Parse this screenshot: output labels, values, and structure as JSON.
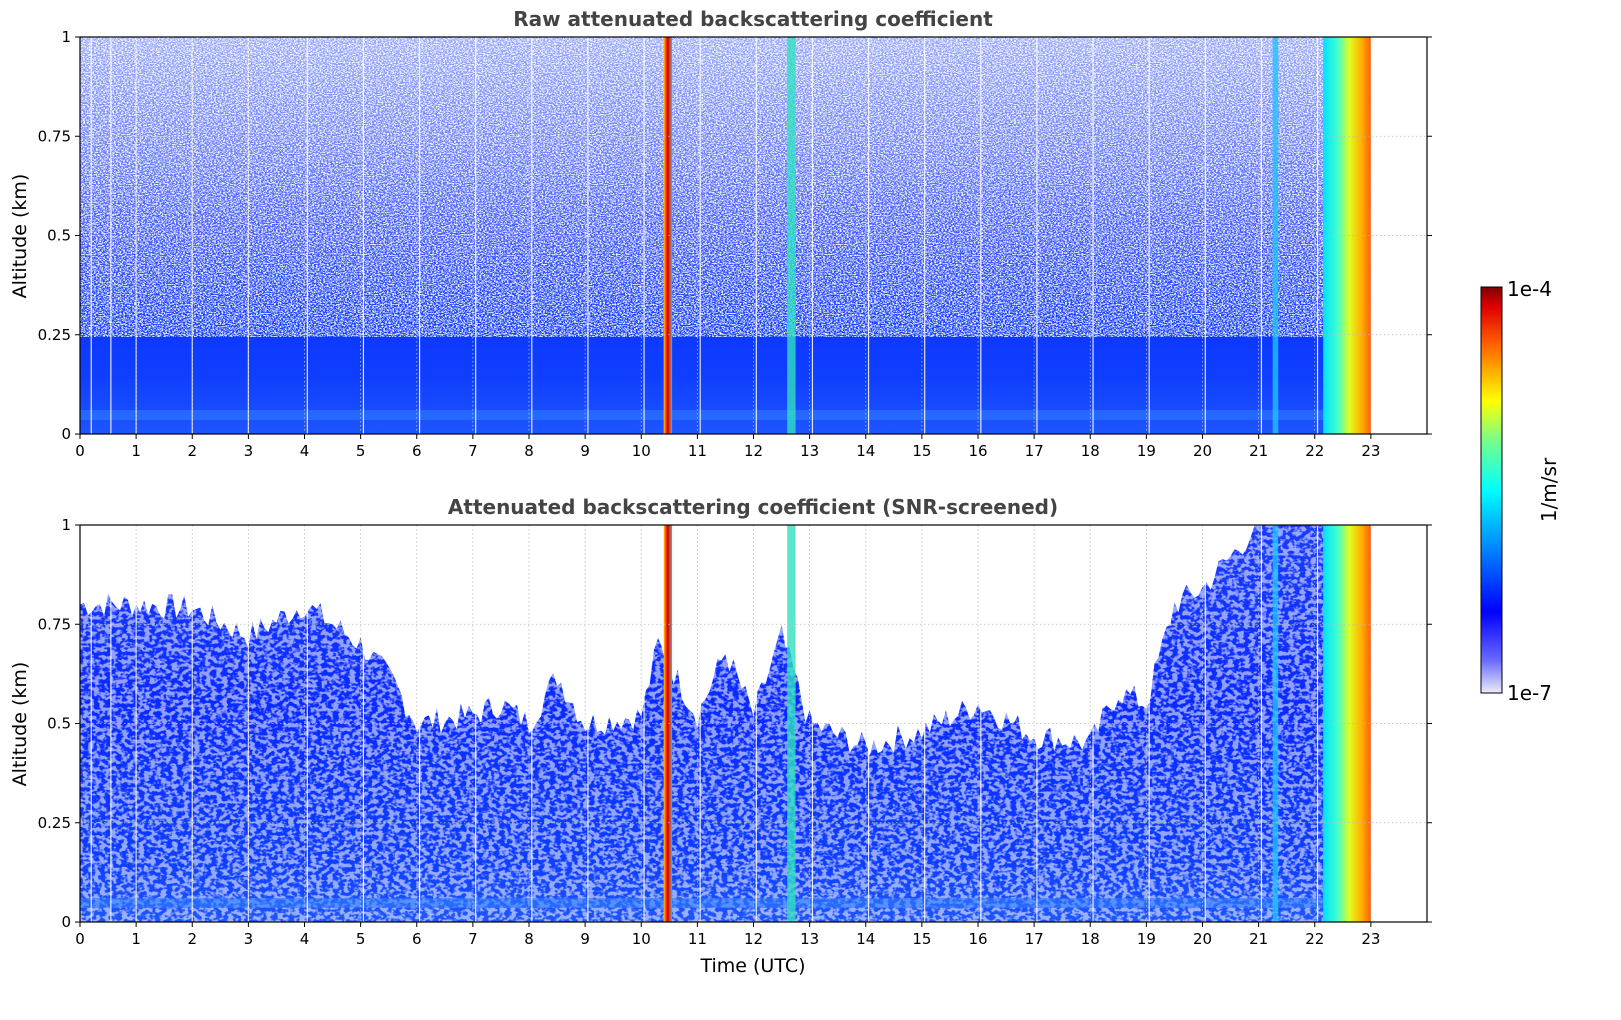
{
  "chart_data": [
    {
      "type": "heatmap",
      "title": "Raw attenuated backscattering coefficient",
      "xlabel": "",
      "ylabel": "Altitude (km)",
      "xlim": [
        0,
        24
      ],
      "ylim": [
        0,
        1
      ],
      "x_ticks": [
        "0",
        "1",
        "2",
        "3",
        "4",
        "5",
        "6",
        "7",
        "8",
        "9",
        "10",
        "11",
        "12",
        "13",
        "14",
        "15",
        "16",
        "17",
        "18",
        "19",
        "20",
        "21",
        "22",
        "23"
      ],
      "y_ticks": [
        "0",
        "0.25",
        "0.5",
        "0.75",
        "1"
      ],
      "data_end_hour": 23.0,
      "missing_profiles_hours": [
        0.2,
        0.55,
        1.0,
        2.0,
        3.0,
        4.05,
        5.05,
        6.05,
        7.05,
        8.05,
        9.05,
        10.05,
        11.05,
        12.05,
        13.05,
        14.05,
        15.05,
        16.05,
        17.05,
        18.05,
        19.05,
        20.05,
        21.05,
        22.05
      ],
      "features": [
        {
          "name": "strong column",
          "x_start": 10.4,
          "x_end": 10.55,
          "level": "1e-4"
        },
        {
          "name": "column",
          "x_start": 12.6,
          "x_end": 12.75,
          "level": "1e-5.5"
        },
        {
          "name": "column",
          "x_start": 21.25,
          "x_end": 21.35,
          "level": "1e-6"
        },
        {
          "name": "high backscatter",
          "x_start": 22.15,
          "x_end": 23.0,
          "level": "1e-4.5"
        }
      ],
      "grid": true
    },
    {
      "type": "heatmap",
      "title": "Attenuated backscattering coefficient (SNR-screened)",
      "xlabel": "Time (UTC)",
      "ylabel": "Altitude (km)",
      "xlim": [
        0,
        24
      ],
      "ylim": [
        0,
        1
      ],
      "x_ticks": [
        "0",
        "1",
        "2",
        "3",
        "4",
        "5",
        "6",
        "7",
        "8",
        "9",
        "10",
        "11",
        "12",
        "13",
        "14",
        "15",
        "16",
        "17",
        "18",
        "19",
        "20",
        "21",
        "22",
        "23"
      ],
      "y_ticks": [
        "0",
        "0.25",
        "0.5",
        "0.75",
        "1"
      ],
      "screen_top_km": [
        [
          0.0,
          0.8
        ],
        [
          1.0,
          0.8
        ],
        [
          2.0,
          0.79
        ],
        [
          3.0,
          0.72
        ],
        [
          4.0,
          0.8
        ],
        [
          5.0,
          0.7
        ],
        [
          5.6,
          0.6
        ],
        [
          6.0,
          0.5
        ],
        [
          7.0,
          0.52
        ],
        [
          7.5,
          0.55
        ],
        [
          8.0,
          0.5
        ],
        [
          8.5,
          0.62
        ],
        [
          9.0,
          0.5
        ],
        [
          10.0,
          0.52
        ],
        [
          10.3,
          0.7
        ],
        [
          11.0,
          0.52
        ],
        [
          11.5,
          0.68
        ],
        [
          12.0,
          0.52
        ],
        [
          12.5,
          0.72
        ],
        [
          13.0,
          0.5
        ],
        [
          14.0,
          0.44
        ],
        [
          15.0,
          0.48
        ],
        [
          16.0,
          0.55
        ],
        [
          17.0,
          0.47
        ],
        [
          18.0,
          0.45
        ],
        [
          18.5,
          0.58
        ],
        [
          19.0,
          0.55
        ],
        [
          19.5,
          0.8
        ],
        [
          20.0,
          0.84
        ],
        [
          20.5,
          0.92
        ],
        [
          21.0,
          1.0
        ],
        [
          23.0,
          1.0
        ]
      ],
      "colorbar": {
        "max_label": "1e-4",
        "min_label": "1e-7",
        "label": "1/m/sr"
      },
      "grid": true
    }
  ]
}
